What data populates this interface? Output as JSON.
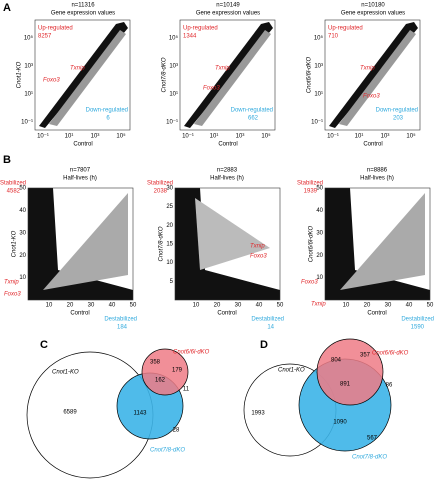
{
  "panel_a": {
    "letter": "A",
    "plots": [
      {
        "n": "n=11316",
        "title": "Gene expression values",
        "ylabel": "Cnot1-KO",
        "xlabel": "Control",
        "up": "Up-regulated",
        "up_count": "8257",
        "down": "Down-regulated",
        "down_count": "6",
        "genes": [
          "Txnip",
          "Foxo3"
        ]
      },
      {
        "n": "n=10149",
        "title": "Gene expression values",
        "ylabel": "Cnot7/8-dKO",
        "xlabel": "Control",
        "up": "Up-regulated",
        "up_count": "1344",
        "down": "Down-regulated",
        "down_count": "662",
        "genes": [
          "Txnip",
          "Foxo3"
        ]
      },
      {
        "n": "n=10180",
        "title": "Gene expression values",
        "ylabel": "Cnot6/6l-dKO",
        "xlabel": "Control",
        "up": "Up-regulated",
        "up_count": "710",
        "down": "Down-regulated",
        "down_count": "203",
        "genes": [
          "Txnip",
          "Foxo3"
        ]
      }
    ],
    "ticks": [
      "10⁻¹",
      "10¹",
      "10³",
      "10⁵"
    ]
  },
  "panel_b": {
    "letter": "B",
    "plots": [
      {
        "n": "n=7807",
        "title": "Half-lives (h)",
        "ylabel": "Cnot1-KO",
        "xlabel": "Control",
        "up": "Stabilized",
        "up_count": "4582",
        "down": "Destabilized",
        "down_count": "184",
        "genes": [
          "Txnip",
          "Foxo3"
        ],
        "yticks": [
          "10",
          "20",
          "30",
          "40",
          "50"
        ]
      },
      {
        "n": "n=2883",
        "title": "Half-lives (h)",
        "ylabel": "Cnot7/8-dKO",
        "xlabel": "Control",
        "up": "Stabilized",
        "up_count": "2038",
        "down": "Destabilized",
        "down_count": "14",
        "genes": [
          "Txnip",
          "Foxo3"
        ],
        "yticks": [
          "5",
          "10",
          "15",
          "20",
          "25",
          "30"
        ]
      },
      {
        "n": "n=8886",
        "title": "Half-lives (h)",
        "ylabel": "Cnot6/6l-dKO",
        "xlabel": "Control",
        "up": "Stabilized",
        "up_count": "1939",
        "down": "Destabilized",
        "down_count": "1590",
        "genes": [
          "Foxo3",
          "Txnip"
        ],
        "yticks": [
          "10",
          "20",
          "30",
          "40",
          "50"
        ]
      }
    ],
    "xticks": [
      "10",
      "20",
      "30",
      "40",
      "50"
    ]
  },
  "panel_c": {
    "letter": "C",
    "labels": [
      "Cnot1-KO",
      "Cnot6/6l-dKO",
      "Cnot7/8-dKO"
    ],
    "numbers": [
      "6589",
      "358",
      "179",
      "162",
      "11",
      "1143",
      "28"
    ]
  },
  "panel_d": {
    "letter": "D",
    "labels": [
      "Cnot1-KO",
      "Cnot6/6l-dKO",
      "Cnot7/8-dKO"
    ],
    "numbers": [
      "1993",
      "804",
      "357",
      "891",
      "86",
      "1090",
      "567"
    ]
  }
}
